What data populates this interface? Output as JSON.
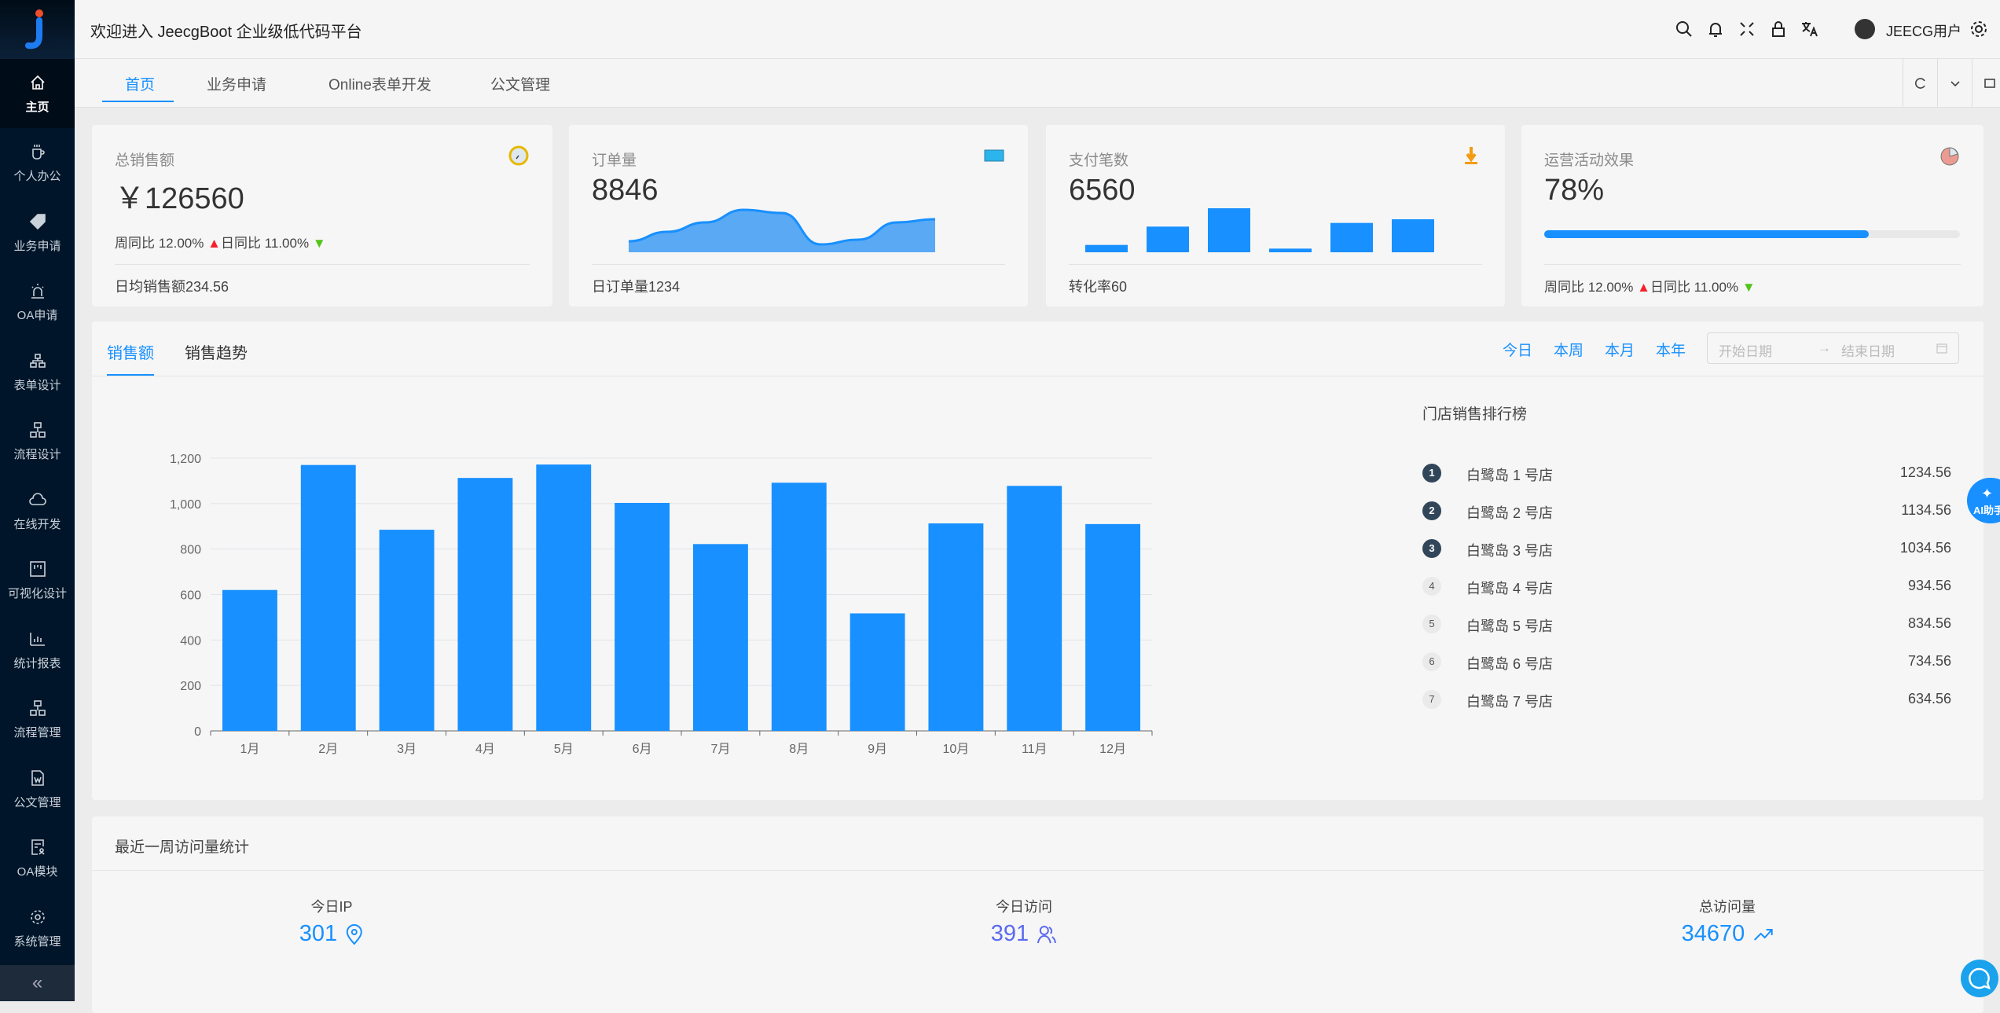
{
  "header": {
    "title": "欢迎进入 JeecgBoot 企业级低代码平台",
    "user": "JEECG用户",
    "icons": [
      "search-icon",
      "bell-icon",
      "fullscreen-icon",
      "lock-icon",
      "translate-icon",
      "avatar",
      "settings-icon"
    ]
  },
  "sidebar": {
    "items": [
      {
        "label": "主页",
        "icon": "home-icon"
      },
      {
        "label": "个人办公",
        "icon": "cup-icon"
      },
      {
        "label": "业务申请",
        "icon": "tag-icon"
      },
      {
        "label": "OA申请",
        "icon": "alarm-icon"
      },
      {
        "label": "表单设计",
        "icon": "cluster-icon"
      },
      {
        "label": "流程设计",
        "icon": "apartment-icon"
      },
      {
        "label": "在线开发",
        "icon": "cloud-icon"
      },
      {
        "label": "可视化设计",
        "icon": "project-icon"
      },
      {
        "label": "统计报表",
        "icon": "bar-chart-icon"
      },
      {
        "label": "流程管理",
        "icon": "apartment-icon"
      },
      {
        "label": "公文管理",
        "icon": "word-file-icon"
      },
      {
        "label": "OA模块",
        "icon": "form-user-icon"
      },
      {
        "label": "系统管理",
        "icon": "gear-icon"
      }
    ],
    "collapse": "«"
  },
  "tabs": [
    {
      "label": "首页"
    },
    {
      "label": "业务申请"
    },
    {
      "label": "Online表单开发"
    },
    {
      "label": "公文管理"
    }
  ],
  "cards": [
    {
      "title": "总销售额",
      "value": "￥126560",
      "week": "周同比 12.00%",
      "day": "日同比 11.00%",
      "footer": "日均销售额234.56"
    },
    {
      "title": "订单量",
      "value": "8846",
      "footer": "日订单量1234",
      "spark": [
        1,
        2.2,
        3.4,
        5,
        4.6,
        0.6,
        1.2,
        3.4,
        3.8
      ]
    },
    {
      "title": "支付笔数",
      "value": "6560",
      "footer": "转化率60",
      "bars": [
        2,
        7,
        12,
        1,
        8,
        9
      ]
    },
    {
      "title": "运营活动效果",
      "value": "78%",
      "progress": 78,
      "week": "周同比 12.00%",
      "day": "日同比 11.00%"
    }
  ],
  "sales": {
    "tabs": [
      "销售额",
      "销售趋势"
    ],
    "ranges": [
      "今日",
      "本周",
      "本月",
      "本年"
    ],
    "start_placeholder": "开始日期",
    "end_placeholder": "结束日期",
    "arrow": "→",
    "rank_title": "门店销售排行榜",
    "rank": [
      {
        "n": "1",
        "name": "白鹭岛 1 号店",
        "v": "1234.56"
      },
      {
        "n": "2",
        "name": "白鹭岛 2 号店",
        "v": "1134.56"
      },
      {
        "n": "3",
        "name": "白鹭岛 3 号店",
        "v": "1034.56"
      },
      {
        "n": "4",
        "name": "白鹭岛 4 号店",
        "v": "934.56"
      },
      {
        "n": "5",
        "name": "白鹭岛 5 号店",
        "v": "834.56"
      },
      {
        "n": "6",
        "name": "白鹭岛 6 号店",
        "v": "734.56"
      },
      {
        "n": "7",
        "name": "白鹭岛 7 号店",
        "v": "634.56"
      }
    ]
  },
  "chart_data": {
    "type": "bar",
    "categories": [
      "1月",
      "2月",
      "3月",
      "4月",
      "5月",
      "6月",
      "7月",
      "8月",
      "9月",
      "10月",
      "11月",
      "12月"
    ],
    "values": [
      620,
      1170,
      885,
      1113,
      1172,
      1003,
      822,
      1092,
      517,
      913,
      1078,
      910
    ],
    "yticks": [
      "0",
      "200",
      "400",
      "600",
      "800",
      "1,000",
      "1,200"
    ],
    "ylim": [
      0,
      1200
    ],
    "grid": true,
    "color": "#1890ff"
  },
  "visits": {
    "title": "最近一周访问量统计",
    "items": [
      {
        "label": "今日IP",
        "value": "301",
        "icon": "location-icon",
        "color": "#1890ff"
      },
      {
        "label": "今日访问",
        "value": "391",
        "icon": "users-icon",
        "color": "#5b6af0"
      },
      {
        "label": "总访问量",
        "value": "34670",
        "icon": "trend-up-icon",
        "color": "#1890ff"
      }
    ]
  },
  "ai": {
    "label": "AI助手"
  }
}
